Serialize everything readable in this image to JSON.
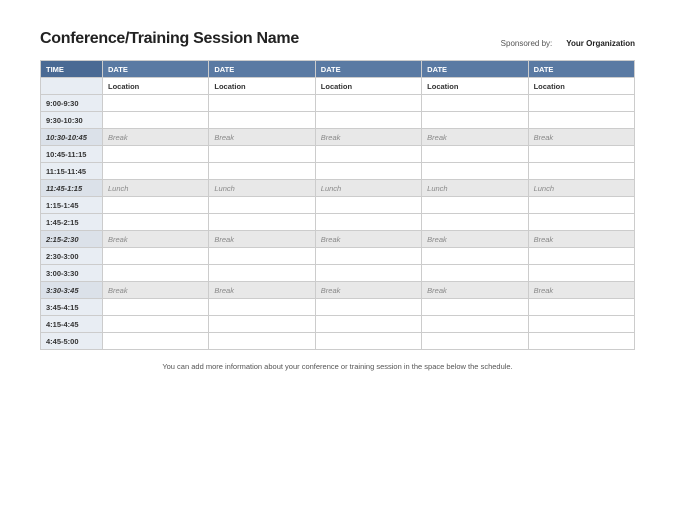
{
  "header": {
    "title": "Conference/Training Session Name",
    "sponsor_label": "Sponsored by:",
    "sponsor_org": "Your Organization"
  },
  "table": {
    "time_header": "TIME",
    "date_headers": [
      "DATE",
      "DATE",
      "DATE",
      "DATE",
      "DATE"
    ],
    "location_row_label": "",
    "location_row": [
      "Location",
      "Location",
      "Location",
      "Location",
      "Location"
    ],
    "rows": [
      {
        "time": "9:00-9:30",
        "type": "normal",
        "cells": [
          "",
          "",
          "",
          "",
          ""
        ]
      },
      {
        "time": "9:30-10:30",
        "type": "normal",
        "cells": [
          "",
          "",
          "",
          "",
          ""
        ]
      },
      {
        "time": "10:30-10:45",
        "type": "break",
        "cells": [
          "Break",
          "Break",
          "Break",
          "Break",
          "Break"
        ]
      },
      {
        "time": "10:45-11:15",
        "type": "normal",
        "cells": [
          "",
          "",
          "",
          "",
          ""
        ]
      },
      {
        "time": "11:15-11:45",
        "type": "normal",
        "cells": [
          "",
          "",
          "",
          "",
          ""
        ]
      },
      {
        "time": "11:45-1:15",
        "type": "break",
        "cells": [
          "Lunch",
          "Lunch",
          "Lunch",
          "Lunch",
          "Lunch"
        ]
      },
      {
        "time": "1:15-1:45",
        "type": "normal",
        "cells": [
          "",
          "",
          "",
          "",
          ""
        ]
      },
      {
        "time": "1:45-2:15",
        "type": "normal",
        "cells": [
          "",
          "",
          "",
          "",
          ""
        ]
      },
      {
        "time": "2:15-2:30",
        "type": "break",
        "cells": [
          "Break",
          "Break",
          "Break",
          "Break",
          "Break"
        ]
      },
      {
        "time": "2:30-3:00",
        "type": "normal",
        "cells": [
          "",
          "",
          "",
          "",
          ""
        ]
      },
      {
        "time": "3:00-3:30",
        "type": "normal",
        "cells": [
          "",
          "",
          "",
          "",
          ""
        ]
      },
      {
        "time": "3:30-3:45",
        "type": "break",
        "cells": [
          "Break",
          "Break",
          "Break",
          "Break",
          "Break"
        ]
      },
      {
        "time": "3:45-4:15",
        "type": "normal",
        "cells": [
          "",
          "",
          "",
          "",
          ""
        ]
      },
      {
        "time": "4:15-4:45",
        "type": "normal",
        "cells": [
          "",
          "",
          "",
          "",
          ""
        ]
      },
      {
        "time": "4:45-5:00",
        "type": "normal",
        "cells": [
          "",
          "",
          "",
          "",
          ""
        ]
      }
    ]
  },
  "footnote": "You can add more information about your conference or training session in the space below the schedule.",
  "colors": {
    "header_bg": "#5a7aa3",
    "time_col_bg": "#e8edf3",
    "break_bg": "#e8e8e8"
  }
}
